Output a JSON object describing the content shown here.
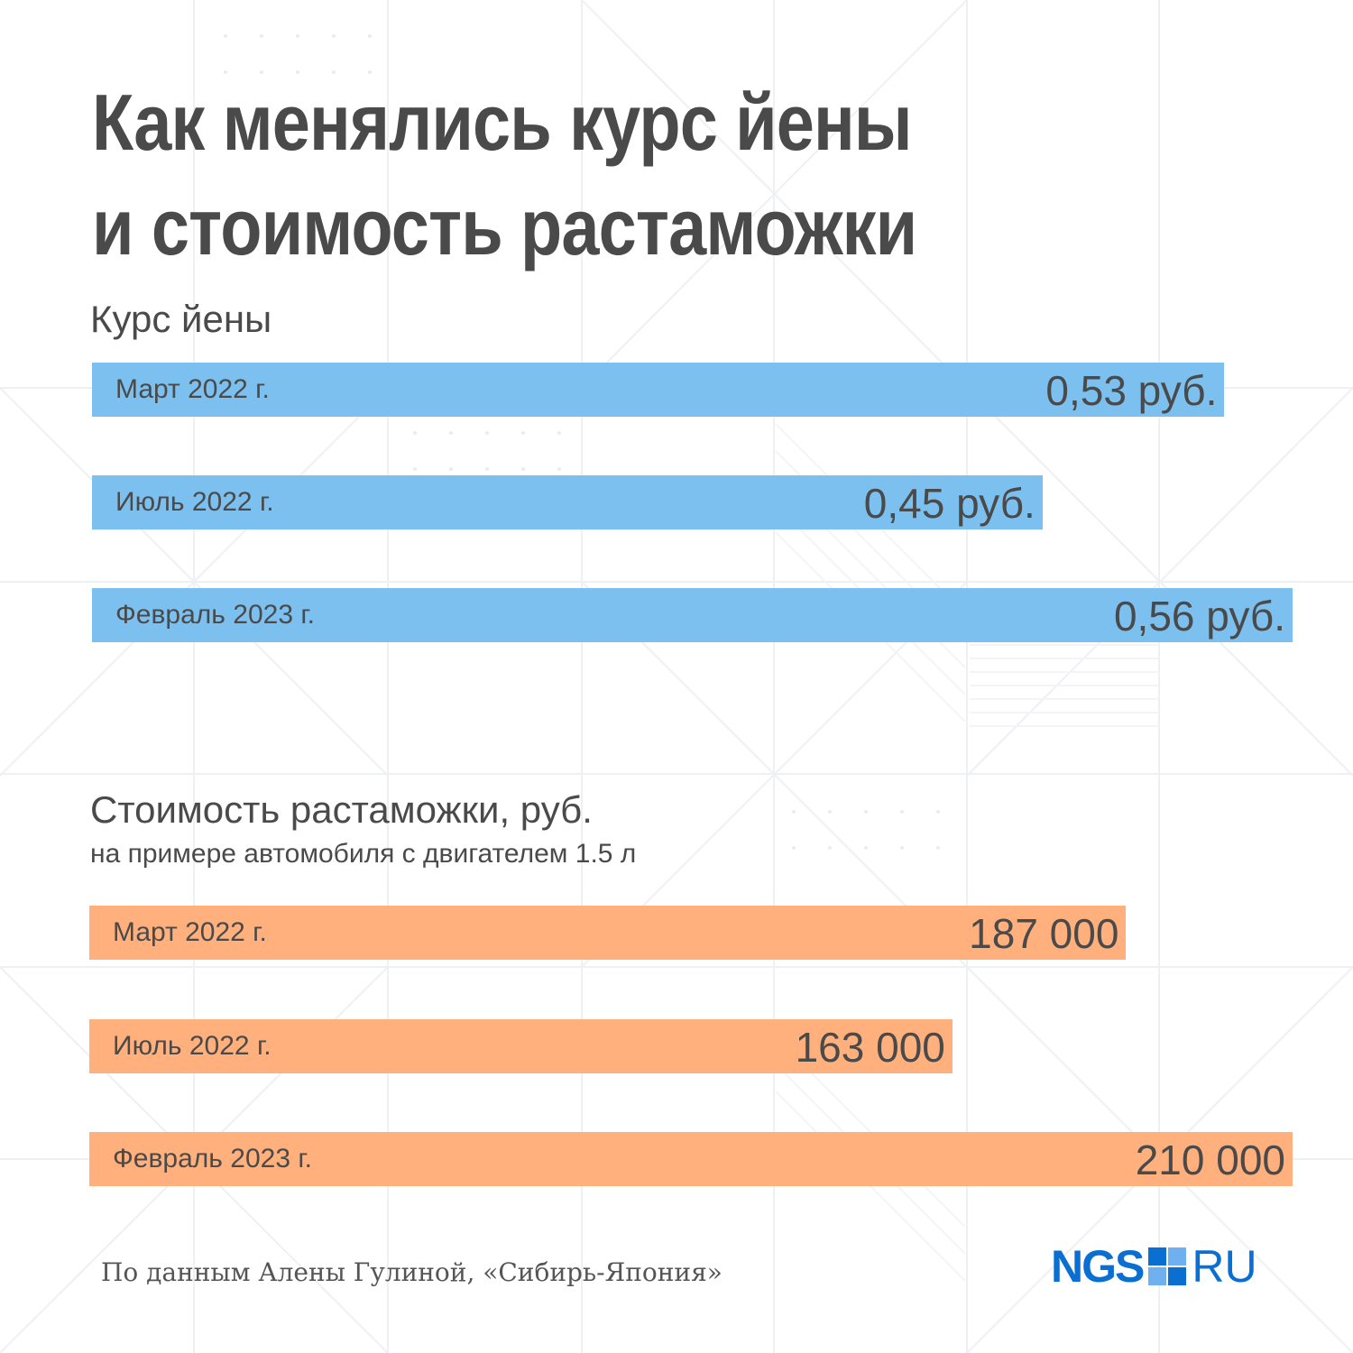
{
  "title_line1": "Как менялись курс йены",
  "title_line2": "и стоимость растаможки",
  "colors": {
    "text": "#4a4a4a",
    "yen_bar": "#7cc0f0",
    "customs_bar": "#ffb07c",
    "brand": "#0a6fd1"
  },
  "chart_data": [
    {
      "type": "bar",
      "orientation": "horizontal",
      "title": "Курс йены",
      "categories": [
        "Март 2022 г.",
        "Июль 2022 г.",
        "Февраль 2023 г."
      ],
      "values": [
        0.53,
        0.45,
        0.56
      ],
      "value_labels": [
        "0,53 руб.",
        "0,45 руб.",
        "0,56 руб."
      ],
      "color": "#7cc0f0",
      "grid": false
    },
    {
      "type": "bar",
      "orientation": "horizontal",
      "title": "Стоимость растаможки, руб.",
      "subtitle": "на примере автомобиля с двигателем 1.5 л",
      "categories": [
        "Март 2022 г.",
        "Июль 2022 г.",
        "Февраль 2023 г."
      ],
      "values": [
        187000,
        163000,
        210000
      ],
      "value_labels": [
        "187 000",
        "163 000",
        "210 000"
      ],
      "color": "#ffb07c",
      "grid": false
    }
  ],
  "source": "По данным Алены Гулиной, «Сибирь-Япония»",
  "logo": {
    "name": "NGS",
    "suffix": "RU",
    "icon": "ngs-square-logo-icon"
  }
}
